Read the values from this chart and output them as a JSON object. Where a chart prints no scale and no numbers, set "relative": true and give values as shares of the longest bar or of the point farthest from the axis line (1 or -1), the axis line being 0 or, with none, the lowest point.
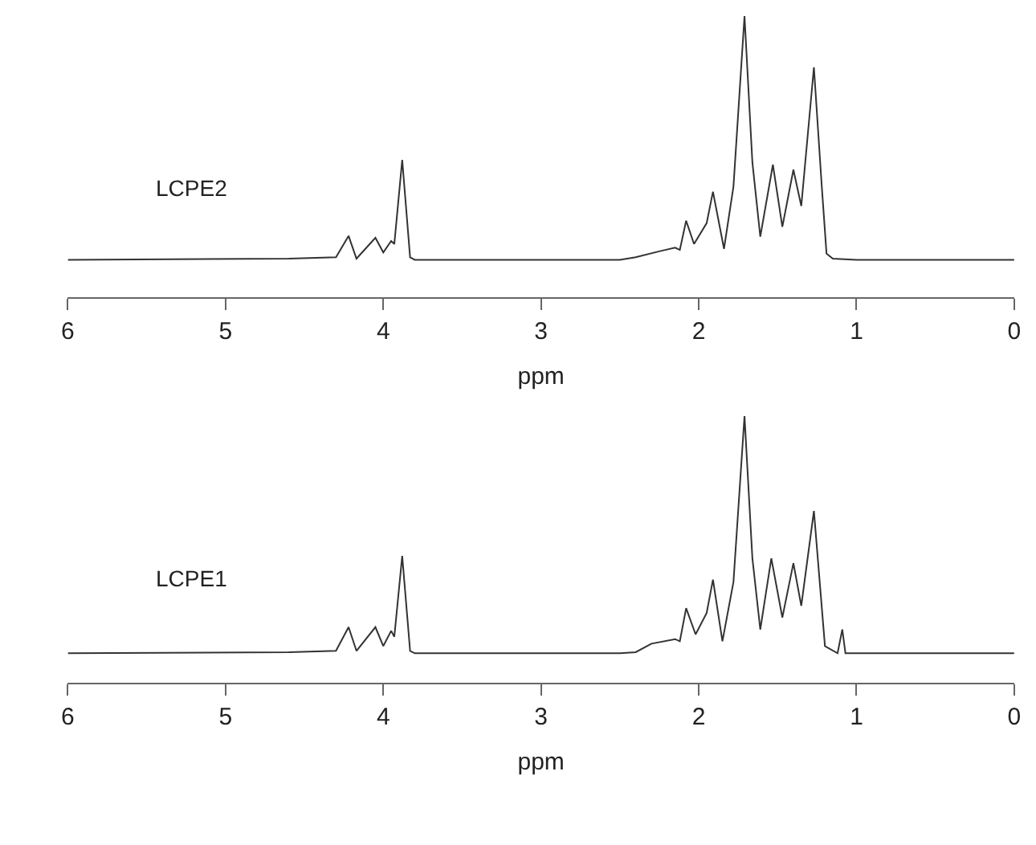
{
  "chart_data": [
    {
      "type": "line",
      "relative": true,
      "xlabel": "ppm",
      "xlim": [
        6,
        0
      ],
      "xticks": [
        6,
        5,
        4,
        3,
        2,
        1,
        0
      ],
      "legend": false,
      "marker": "none",
      "line_style": "solid",
      "series": [
        {
          "name": "LCPE2",
          "color": "#333333",
          "x": [
            6.0,
            4.6,
            4.3,
            4.22,
            4.17,
            4.05,
            4.0,
            3.95,
            3.93,
            3.88,
            3.83,
            3.8,
            2.5,
            2.4,
            2.25,
            2.15,
            2.12,
            2.08,
            2.03,
            1.95,
            1.91,
            1.84,
            1.78,
            1.71,
            1.66,
            1.61,
            1.53,
            1.47,
            1.4,
            1.35,
            1.27,
            1.22,
            1.19,
            1.15,
            1.0,
            0.0
          ],
          "values": [
            0.134,
            0.138,
            0.143,
            0.219,
            0.138,
            0.212,
            0.16,
            0.201,
            0.19,
            0.489,
            0.143,
            0.134,
            0.134,
            0.143,
            0.164,
            0.177,
            0.169,
            0.273,
            0.19,
            0.264,
            0.376,
            0.173,
            0.394,
            1.0,
            0.48,
            0.216,
            0.472,
            0.251,
            0.454,
            0.325,
            0.818,
            0.394,
            0.156,
            0.138,
            0.134,
            0.134
          ]
        }
      ]
    },
    {
      "type": "line",
      "relative": true,
      "xlabel": "ppm",
      "xlim": [
        6,
        0
      ],
      "xticks": [
        6,
        5,
        4,
        3,
        2,
        1,
        0
      ],
      "legend": false,
      "marker": "none",
      "line_style": "solid",
      "series": [
        {
          "name": "LCPE1",
          "color": "#333333",
          "x": [
            6.0,
            4.6,
            4.3,
            4.22,
            4.17,
            4.05,
            4.0,
            3.95,
            3.93,
            3.88,
            3.83,
            3.8,
            2.5,
            2.4,
            2.3,
            2.15,
            2.12,
            2.08,
            2.02,
            1.95,
            1.91,
            1.85,
            1.78,
            1.71,
            1.66,
            1.61,
            1.54,
            1.47,
            1.4,
            1.35,
            1.27,
            1.2,
            1.12,
            1.09,
            1.07,
            1.0,
            0.0
          ],
          "values": [
            0.11,
            0.114,
            0.119,
            0.208,
            0.119,
            0.208,
            0.137,
            0.194,
            0.172,
            0.475,
            0.119,
            0.11,
            0.11,
            0.114,
            0.146,
            0.163,
            0.155,
            0.279,
            0.181,
            0.261,
            0.386,
            0.155,
            0.377,
            1.0,
            0.466,
            0.199,
            0.466,
            0.244,
            0.448,
            0.288,
            0.644,
            0.137,
            0.11,
            0.199,
            0.11,
            0.11,
            0.11
          ]
        }
      ]
    }
  ]
}
